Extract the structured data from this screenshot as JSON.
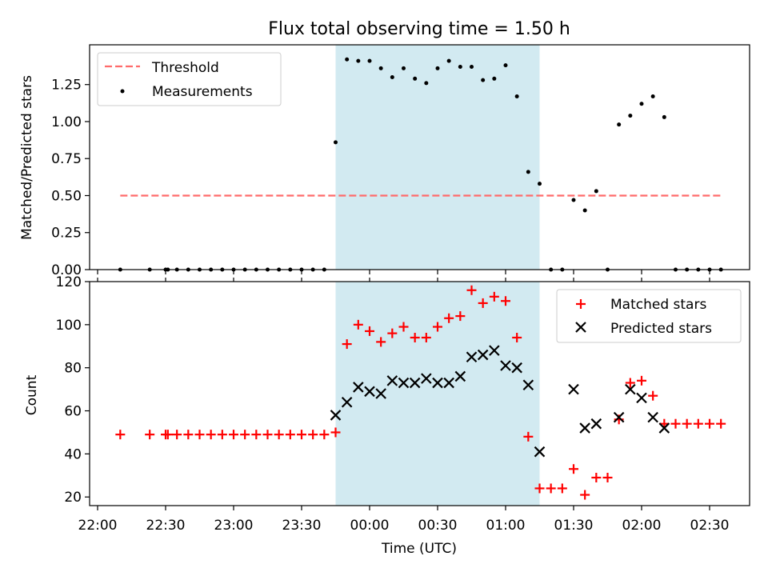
{
  "chart_data": [
    {
      "type": "scatter",
      "title": "Flux total observing time = 1.50 h",
      "xlabel": "",
      "ylabel": "Matched/Predicted stars",
      "ylim": [
        0,
        1.5
      ],
      "yticks": [
        "0.00",
        "0.25",
        "0.50",
        "0.75",
        "1.00",
        "1.25"
      ],
      "shaded_region": {
        "start": "23:45",
        "end": "01:15",
        "color": "#add8e6"
      },
      "legend_position": "top-left",
      "series": [
        {
          "name": "Threshold",
          "kind": "line-dashed",
          "color": "#ff6b6b",
          "x": [
            "22:10",
            "02:35"
          ],
          "y": [
            0.5,
            0.5
          ]
        },
        {
          "name": "Measurements",
          "kind": "dot",
          "color": "#000000",
          "x": [
            "22:10",
            "22:23",
            "22:30",
            "22:31",
            "22:35",
            "22:40",
            "22:45",
            "22:50",
            "22:55",
            "23:00",
            "23:05",
            "23:10",
            "23:15",
            "23:20",
            "23:25",
            "23:30",
            "23:35",
            "23:40",
            "23:45",
            "23:50",
            "23:55",
            "00:00",
            "00:05",
            "00:10",
            "00:15",
            "00:20",
            "00:25",
            "00:30",
            "00:35",
            "00:40",
            "00:45",
            "00:50",
            "00:55",
            "01:00",
            "01:05",
            "01:10",
            "01:15",
            "01:20",
            "01:25",
            "01:30",
            "01:35",
            "01:40",
            "01:45",
            "01:50",
            "01:55",
            "02:00",
            "02:05",
            "02:10",
            "02:15",
            "02:20",
            "02:25",
            "02:30",
            "02:35"
          ],
          "y": [
            0,
            0,
            0,
            0,
            0,
            0,
            0,
            0,
            0,
            0,
            0,
            0,
            0,
            0,
            0,
            0,
            0,
            0,
            0.86,
            1.42,
            1.41,
            1.41,
            1.36,
            1.3,
            1.36,
            1.29,
            1.26,
            1.36,
            1.41,
            1.37,
            1.37,
            1.28,
            1.29,
            1.38,
            1.17,
            0.66,
            0.58,
            0,
            0,
            0.47,
            0.4,
            0.53,
            0,
            0.98,
            1.04,
            1.12,
            1.17,
            1.03,
            0,
            0,
            0,
            0,
            0
          ]
        }
      ]
    },
    {
      "type": "scatter",
      "xlabel": "Time (UTC)",
      "ylabel": "Count",
      "ylim": [
        16,
        120
      ],
      "yticks": [
        "20",
        "40",
        "60",
        "80",
        "100",
        "120"
      ],
      "xticks": [
        "22:00",
        "22:30",
        "23:00",
        "23:30",
        "00:00",
        "00:30",
        "01:00",
        "01:30",
        "02:00",
        "02:30"
      ],
      "shaded_region": {
        "start": "23:45",
        "end": "01:15",
        "color": "#add8e6"
      },
      "legend_position": "top-right",
      "series": [
        {
          "name": "Matched stars",
          "kind": "plus",
          "color": "#ff0000",
          "x": [
            "22:10",
            "22:23",
            "22:30",
            "22:31",
            "22:35",
            "22:40",
            "22:45",
            "22:50",
            "22:55",
            "23:00",
            "23:05",
            "23:10",
            "23:15",
            "23:20",
            "23:25",
            "23:30",
            "23:35",
            "23:40",
            "23:45",
            "23:50",
            "23:55",
            "00:00",
            "00:05",
            "00:10",
            "00:15",
            "00:20",
            "00:25",
            "00:30",
            "00:35",
            "00:40",
            "00:45",
            "00:50",
            "00:55",
            "01:00",
            "01:05",
            "01:10",
            "01:15",
            "01:20",
            "01:25",
            "01:30",
            "01:35",
            "01:40",
            "01:45",
            "01:50",
            "01:55",
            "02:00",
            "02:05",
            "02:10",
            "02:15",
            "02:20",
            "02:25",
            "02:30",
            "02:35"
          ],
          "y": [
            49,
            49,
            49,
            49,
            49,
            49,
            49,
            49,
            49,
            49,
            49,
            49,
            49,
            49,
            49,
            49,
            49,
            49,
            50,
            91,
            100,
            97,
            92,
            96,
            99,
            94,
            94,
            99,
            103,
            104,
            116,
            110,
            113,
            111,
            94,
            48,
            24,
            24,
            24,
            33,
            21,
            29,
            29,
            56,
            73,
            74,
            67,
            54,
            54,
            54,
            54,
            54,
            54
          ]
        },
        {
          "name": "Predicted stars",
          "kind": "x",
          "color": "#000000",
          "x": [
            "23:45",
            "23:50",
            "23:55",
            "00:00",
            "00:05",
            "00:10",
            "00:15",
            "00:20",
            "00:25",
            "00:30",
            "00:35",
            "00:40",
            "00:45",
            "00:50",
            "00:55",
            "01:00",
            "01:05",
            "01:10",
            "01:15",
            "01:30",
            "01:35",
            "01:40",
            "01:50",
            "01:55",
            "02:00",
            "02:05",
            "02:10"
          ],
          "y": [
            58,
            64,
            71,
            69,
            68,
            74,
            73,
            73,
            75,
            73,
            73,
            76,
            85,
            86,
            88,
            81,
            80,
            72,
            41,
            70,
            52,
            54,
            57,
            70,
            66,
            57,
            52
          ]
        }
      ]
    }
  ]
}
